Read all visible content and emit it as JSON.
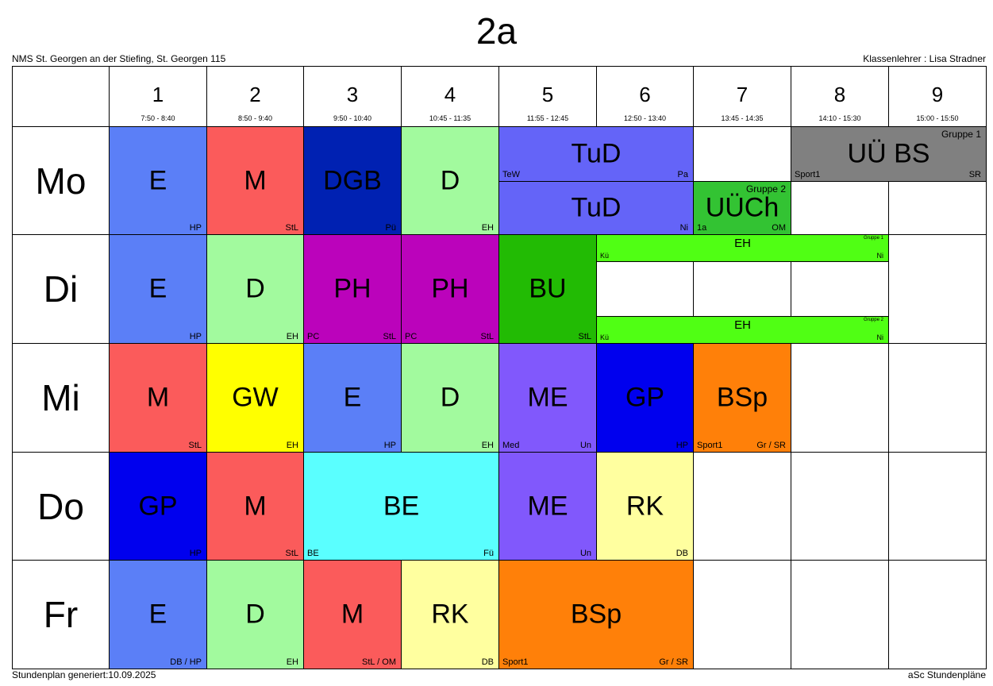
{
  "header": {
    "title": "2a",
    "school": "NMS St. Georgen an der Stiefing, St. Georgen 115",
    "teacher": "Klassenlehrer : Lisa Stradner"
  },
  "footer": {
    "generated": "Stundenplan generiert:10.09.2025",
    "brand": "aSc Stundenpläne"
  },
  "periods": [
    {
      "num": "1",
      "time": "7:50 - 8:40"
    },
    {
      "num": "2",
      "time": "8:50 - 9:40"
    },
    {
      "num": "3",
      "time": "9:50 - 10:40"
    },
    {
      "num": "4",
      "time": "10:45 - 11:35"
    },
    {
      "num": "5",
      "time": "11:55 - 12:45"
    },
    {
      "num": "6",
      "time": "12:50 - 13:40"
    },
    {
      "num": "7",
      "time": "13:45 - 14:35"
    },
    {
      "num": "8",
      "time": "14:10 - 15:30"
    },
    {
      "num": "9",
      "time": "15:00 - 15:50"
    }
  ],
  "days": [
    "Mo",
    "Di",
    "Mi",
    "Do",
    "Fr"
  ],
  "lessons": [
    {
      "day": 0,
      "period": 1,
      "span": 1,
      "subject": "E",
      "bl": "",
      "br": "HP",
      "tr": "",
      "color": "#5b7ff7"
    },
    {
      "day": 0,
      "period": 2,
      "span": 1,
      "subject": "M",
      "bl": "",
      "br": "StL",
      "tr": "",
      "color": "#fb5b5b"
    },
    {
      "day": 0,
      "period": 3,
      "span": 1,
      "subject": "DGB",
      "bl": "",
      "br": "Pü",
      "tr": "",
      "color": "#0021b2"
    },
    {
      "day": 0,
      "period": 4,
      "span": 1,
      "subject": "D",
      "bl": "",
      "br": "EH",
      "tr": "",
      "color": "#a2fa9e"
    },
    {
      "day": 0,
      "period": 5,
      "span": 2,
      "subject": "TuD",
      "bl": "TeW",
      "br": "Pa",
      "tr": "",
      "color": "#6464f8"
    },
    {
      "day": 0,
      "period": 5,
      "span": 2,
      "subject": "TuD",
      "bl": "",
      "br": "Ni",
      "tr": "",
      "color": "#6464f8"
    },
    {
      "day": 0,
      "period": 7,
      "span": 1,
      "subject": "UÜCh",
      "bl": "1a",
      "br": "OM",
      "tr": "Gruppe 2",
      "color": "#33c333"
    },
    {
      "day": 0,
      "period": 8,
      "span": 2,
      "subject": "UÜ BS",
      "bl": "Sport1",
      "br": "SR",
      "tr": "Gruppe 1",
      "color": "#808080"
    },
    {
      "day": 1,
      "period": 1,
      "span": 1,
      "subject": "E",
      "bl": "",
      "br": "HP",
      "tr": "",
      "color": "#5b7ff7"
    },
    {
      "day": 1,
      "period": 2,
      "span": 1,
      "subject": "D",
      "bl": "",
      "br": "EH",
      "tr": "",
      "color": "#a2fa9e"
    },
    {
      "day": 1,
      "period": 3,
      "span": 1,
      "subject": "PH",
      "bl": "PC",
      "br": "StL",
      "tr": "",
      "color": "#bb03bb"
    },
    {
      "day": 1,
      "period": 4,
      "span": 1,
      "subject": "PH",
      "bl": "PC",
      "br": "StL",
      "tr": "",
      "color": "#bb03bb"
    },
    {
      "day": 1,
      "period": 5,
      "span": 1,
      "subject": "BU",
      "bl": "",
      "br": "StL",
      "tr": "",
      "color": "#22bb04"
    },
    {
      "day": 1,
      "period": 6,
      "span": 3,
      "subject": "EH",
      "bl": "Kü",
      "br": "Ni",
      "tr": "Gruppe 1",
      "color": "#50ff14"
    },
    {
      "day": 1,
      "period": 6,
      "span": 3,
      "subject": "EH",
      "bl": "Kü",
      "br": "Ni",
      "tr": "Gruppe 2",
      "color": "#50ff14"
    },
    {
      "day": 2,
      "period": 1,
      "span": 1,
      "subject": "M",
      "bl": "",
      "br": "StL",
      "tr": "",
      "color": "#fb5b5b"
    },
    {
      "day": 2,
      "period": 2,
      "span": 1,
      "subject": "GW",
      "bl": "",
      "br": "EH",
      "tr": "",
      "color": "#ffff00"
    },
    {
      "day": 2,
      "period": 3,
      "span": 1,
      "subject": "E",
      "bl": "",
      "br": "HP",
      "tr": "",
      "color": "#5b7ff7"
    },
    {
      "day": 2,
      "period": 4,
      "span": 1,
      "subject": "D",
      "bl": "",
      "br": "EH",
      "tr": "",
      "color": "#a2fa9e"
    },
    {
      "day": 2,
      "period": 5,
      "span": 1,
      "subject": "ME",
      "bl": "Med",
      "br": "Un",
      "tr": "",
      "color": "#8158fc"
    },
    {
      "day": 2,
      "period": 6,
      "span": 1,
      "subject": "GP",
      "bl": "",
      "br": "HP",
      "tr": "",
      "color": "#0000ee"
    },
    {
      "day": 2,
      "period": 7,
      "span": 1,
      "subject": "BSp",
      "bl": "Sport1",
      "br": "Gr / SR",
      "tr": "",
      "color": "#ff8009"
    },
    {
      "day": 3,
      "period": 1,
      "span": 1,
      "subject": "GP",
      "bl": "",
      "br": "HP",
      "tr": "",
      "color": "#0000ee"
    },
    {
      "day": 3,
      "period": 2,
      "span": 1,
      "subject": "M",
      "bl": "",
      "br": "StL",
      "tr": "",
      "color": "#fb5b5b"
    },
    {
      "day": 3,
      "period": 3,
      "span": 2,
      "subject": "BE",
      "bl": "BE",
      "br": "Fü",
      "tr": "",
      "color": "#5affff"
    },
    {
      "day": 3,
      "period": 5,
      "span": 1,
      "subject": "ME",
      "bl": "",
      "br": "Un",
      "tr": "",
      "color": "#8158fc"
    },
    {
      "day": 3,
      "period": 6,
      "span": 1,
      "subject": "RK",
      "bl": "",
      "br": "DB",
      "tr": "",
      "color": "#ffff9f"
    },
    {
      "day": 4,
      "period": 1,
      "span": 1,
      "subject": "E",
      "bl": "",
      "br": "DB / HP",
      "tr": "",
      "color": "#5b7ff7"
    },
    {
      "day": 4,
      "period": 2,
      "span": 1,
      "subject": "D",
      "bl": "",
      "br": "EH",
      "tr": "",
      "color": "#a2fa9e"
    },
    {
      "day": 4,
      "period": 3,
      "span": 1,
      "subject": "M",
      "bl": "",
      "br": "StL / OM",
      "tr": "",
      "color": "#fb5b5b"
    },
    {
      "day": 4,
      "period": 4,
      "span": 1,
      "subject": "RK",
      "bl": "",
      "br": "DB",
      "tr": "",
      "color": "#ffff9f"
    },
    {
      "day": 4,
      "period": 5,
      "span": 2,
      "subject": "BSp",
      "bl": "Sport1",
      "br": "Gr / SR",
      "tr": "",
      "color": "#ff8009"
    }
  ]
}
